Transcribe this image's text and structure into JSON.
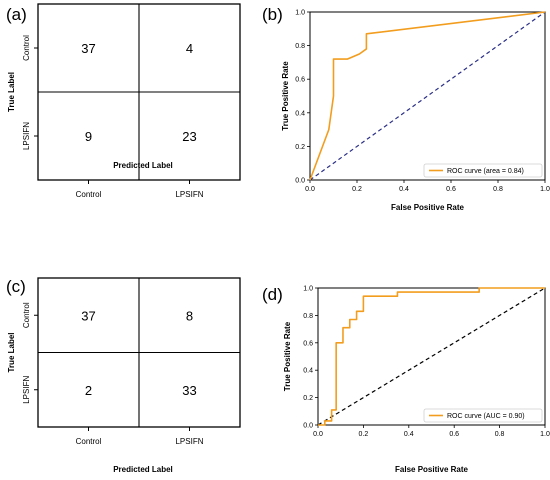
{
  "chart_data": [
    {
      "panel_label": "(a)",
      "type": "heatmap",
      "title": "",
      "xlabel": "Predicted Label",
      "ylabel": "True Label",
      "x_categories": [
        "Control",
        "LPSIFN"
      ],
      "y_categories": [
        "Control",
        "LPSIFN"
      ],
      "matrix": [
        [
          37,
          4
        ],
        [
          9,
          23
        ]
      ]
    },
    {
      "panel_label": "(b)",
      "type": "line",
      "title": "",
      "xlabel": "False Positive Rate",
      "ylabel": "True Positive Rate",
      "xlim": [
        0.0,
        1.0
      ],
      "ylim": [
        0.0,
        1.0
      ],
      "xticks": [
        "0.0",
        "0.2",
        "0.4",
        "0.6",
        "0.8",
        "1.0"
      ],
      "yticks": [
        "0.0",
        "0.2",
        "0.4",
        "0.6",
        "0.8",
        "1.0"
      ],
      "legend_position": "lower-right",
      "series": [
        {
          "name": "ROC curve (area = 0.84)",
          "color": "#f29d1e",
          "x": [
            0.0,
            0.08,
            0.1,
            0.1,
            0.16,
            0.16,
            0.21,
            0.24,
            0.24,
            1.0
          ],
          "y": [
            0.0,
            0.3,
            0.5,
            0.72,
            0.72,
            0.72,
            0.75,
            0.78,
            0.87,
            1.0
          ]
        },
        {
          "name": "",
          "color": "#2b2f86",
          "dashed": true,
          "x": [
            0.0,
            1.0
          ],
          "y": [
            0.0,
            1.0
          ]
        }
      ]
    },
    {
      "panel_label": "(c)",
      "type": "heatmap",
      "title": "",
      "xlabel": "Predicted Label",
      "ylabel": "True Label",
      "x_categories": [
        "Control",
        "LPSIFN"
      ],
      "y_categories": [
        "Control",
        "LPSIFN"
      ],
      "matrix": [
        [
          37,
          8
        ],
        [
          2,
          33
        ]
      ]
    },
    {
      "panel_label": "(d)",
      "type": "line",
      "title": "",
      "xlabel": "False Positive Rate",
      "ylabel": "True Positive Rate",
      "xlim": [
        0.0,
        1.0
      ],
      "ylim": [
        0.0,
        1.0
      ],
      "xticks": [
        "0.0",
        "0.2",
        "0.4",
        "0.6",
        "0.8",
        "1.0"
      ],
      "yticks": [
        "0.0",
        "0.2",
        "0.4",
        "0.6",
        "0.8",
        "1.0"
      ],
      "legend_position": "lower-right",
      "series": [
        {
          "name": "ROC curve (AUC = 0.90)",
          "color": "#f29d1e",
          "x": [
            0.0,
            0.03,
            0.03,
            0.06,
            0.06,
            0.08,
            0.08,
            0.11,
            0.11,
            0.14,
            0.14,
            0.17,
            0.17,
            0.2,
            0.2,
            0.35,
            0.35,
            0.71,
            0.71,
            1.0
          ],
          "y": [
            0.0,
            0.0,
            0.03,
            0.03,
            0.11,
            0.11,
            0.6,
            0.6,
            0.71,
            0.71,
            0.77,
            0.77,
            0.83,
            0.83,
            0.94,
            0.94,
            0.97,
            0.97,
            1.0,
            1.0
          ]
        },
        {
          "name": "",
          "color": "#000000",
          "dashed": true,
          "x": [
            0.0,
            1.0
          ],
          "y": [
            0.0,
            1.0
          ]
        }
      ]
    }
  ]
}
